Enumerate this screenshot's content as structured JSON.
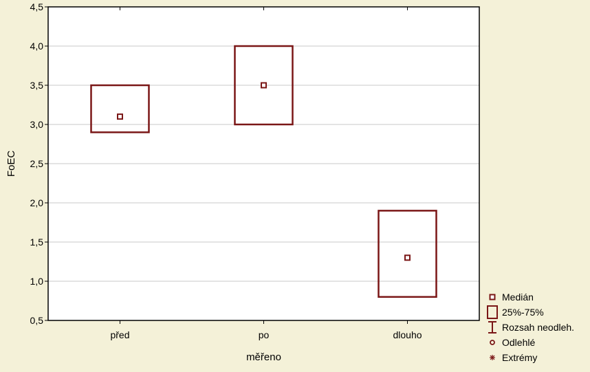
{
  "chart_data": {
    "type": "box",
    "title": "",
    "xlabel": "měřeno",
    "ylabel": "FoEC",
    "ylim": [
      0.5,
      4.5
    ],
    "yticks": [
      0.5,
      1.0,
      1.5,
      2.0,
      2.5,
      3.0,
      3.5,
      4.0,
      4.5
    ],
    "ytick_labels": [
      "0,5",
      "1,0",
      "1,5",
      "2,0",
      "2,5",
      "3,0",
      "3,5",
      "4,0",
      "4,5"
    ],
    "categories": [
      "před",
      "po",
      "dlouho"
    ],
    "boxes": [
      {
        "category": "před",
        "median": 3.1,
        "q1": 2.9,
        "q3": 3.5
      },
      {
        "category": "po",
        "median": 3.5,
        "q1": 3.0,
        "q3": 4.0
      },
      {
        "category": "dlouho",
        "median": 1.3,
        "q1": 0.8,
        "q3": 1.9
      }
    ],
    "grid": true,
    "legend_position": "bottom-right",
    "legend": [
      {
        "symbol": "median-square",
        "label": "Medián"
      },
      {
        "symbol": "box",
        "label": "25%-75%"
      },
      {
        "symbol": "whisker",
        "label": "Rozsah neodleh."
      },
      {
        "symbol": "outlier-circle",
        "label": "Odlehlé"
      },
      {
        "symbol": "extreme-star",
        "label": "Extrémy"
      }
    ],
    "colors": {
      "box": "#7a1616",
      "background": "#f4f1d8",
      "plot_background": "#ffffff",
      "grid": "#c8c8c8",
      "axis": "#000000"
    }
  }
}
